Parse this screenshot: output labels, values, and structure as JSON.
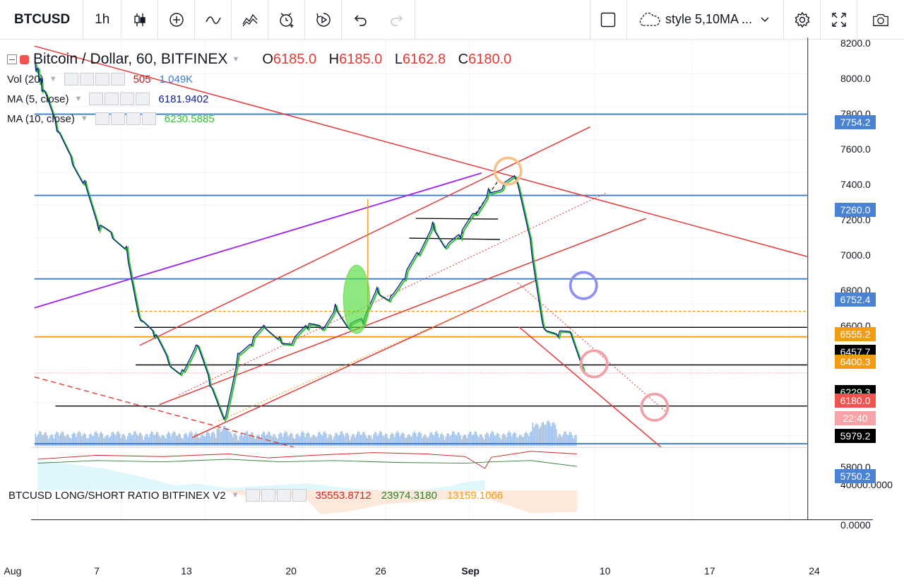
{
  "toolbar": {
    "symbol": "BTCUSD",
    "interval": "1h",
    "style_label": "style 5,10MA ..."
  },
  "legend": {
    "title": "Bitcoin / Dollar, 60, BITFINEX",
    "ohlc": {
      "o_label": "O",
      "o": "6185.0",
      "h_label": "H",
      "h": "6185.0",
      "l_label": "L",
      "l": "6162.8",
      "c_label": "C",
      "c": "6180.0"
    },
    "vol": {
      "name": "Vol (20)",
      "value1": "505",
      "value2": "1.049K"
    },
    "ma5": {
      "name": "MA (5, close)",
      "value": "6181.9402"
    },
    "ma10": {
      "name": "MA (10, close)",
      "value": "6230.5885"
    },
    "ratio": {
      "name": "BTCUSD LONG/SHORT RATIO BITFINEX V2",
      "v1": "35553.8712",
      "v2": "23974.3180",
      "v3": "13159.1066"
    }
  },
  "colors": {
    "red_line": "#e53935",
    "blue_line": "#3d7bd1",
    "purple_line": "#9c27f0",
    "orange_line": "#f39c12",
    "ma5": "#0d1b8c",
    "ma10": "#2ec42e",
    "price_label_red": "#ef5350",
    "price_label_blue": "#4a82d4",
    "price_label_orange": "#f39c12",
    "price_label_black": "#000000"
  },
  "chart_data": {
    "type": "line",
    "title": "Bitcoin / Dollar, 60, BITFINEX",
    "y_axis_ticks": [
      "8200.0",
      "8000.0",
      "7800.0",
      "7600.0",
      "7400.0",
      "7200.0",
      "7000.0",
      "6800.0",
      "6600.0",
      "5800.0"
    ],
    "ylim": [
      5720,
      8220
    ],
    "x_axis_ticks": [
      "Aug",
      "7",
      "13",
      "20",
      "26",
      "Sep",
      "10",
      "17",
      "24"
    ],
    "ratio_axis_ticks": [
      "40000.0000",
      "0.0000"
    ],
    "price_labels": [
      {
        "text": "7754.2",
        "price": 7754.2,
        "kind": "blue"
      },
      {
        "text": "7260.0",
        "price": 7260.0,
        "kind": "blue"
      },
      {
        "text": "6752.4",
        "price": 6752.4,
        "kind": "blue"
      },
      {
        "text": "6555.2",
        "price": 6555.2,
        "kind": "orange"
      },
      {
        "text": "6457.7",
        "price": 6457.7,
        "kind": "black"
      },
      {
        "text": "6400.3",
        "price": 6400.3,
        "kind": "orange"
      },
      {
        "text": "6229.3",
        "price": 6229.3,
        "kind": "black"
      },
      {
        "text": "6180.0",
        "price": 6180.0,
        "kind": "red"
      },
      {
        "text": "5979.2",
        "price": 5979.2,
        "kind": "black"
      },
      {
        "text": "5750.2",
        "price": 5750.2,
        "kind": "blue"
      }
    ],
    "countdown": "22:40",
    "series": [
      {
        "name": "Bitcoin / Dollar, 60, BITFINEX",
        "x": [
          "2018-08-01",
          "2018-08-02",
          "2018-08-03",
          "2018-08-04",
          "2018-08-05",
          "2018-08-06",
          "2018-08-07",
          "2018-08-08",
          "2018-08-09",
          "2018-08-10",
          "2018-08-11",
          "2018-08-12",
          "2018-08-13",
          "2018-08-14",
          "2018-08-15",
          "2018-08-16",
          "2018-08-17",
          "2018-08-18",
          "2018-08-19",
          "2018-08-20",
          "2018-08-21",
          "2018-08-22",
          "2018-08-23",
          "2018-08-24",
          "2018-08-25",
          "2018-08-26",
          "2018-08-27",
          "2018-08-28",
          "2018-08-29",
          "2018-08-30",
          "2018-08-31",
          "2018-09-01",
          "2018-09-02",
          "2018-09-03",
          "2018-09-04",
          "2018-09-05",
          "2018-09-06",
          "2018-09-07",
          "2018-09-08",
          "2018-09-09"
        ],
        "values": [
          7900,
          7650,
          7500,
          7350,
          7050,
          7000,
          6950,
          6500,
          6400,
          6250,
          6200,
          6350,
          6100,
          5900,
          6300,
          6350,
          6450,
          6400,
          6380,
          6450,
          6450,
          6600,
          6450,
          6480,
          6700,
          6650,
          6750,
          6900,
          7100,
          6950,
          7000,
          7150,
          7300,
          7300,
          7350,
          7000,
          6450,
          6400,
          6400,
          6180
        ]
      }
    ]
  }
}
